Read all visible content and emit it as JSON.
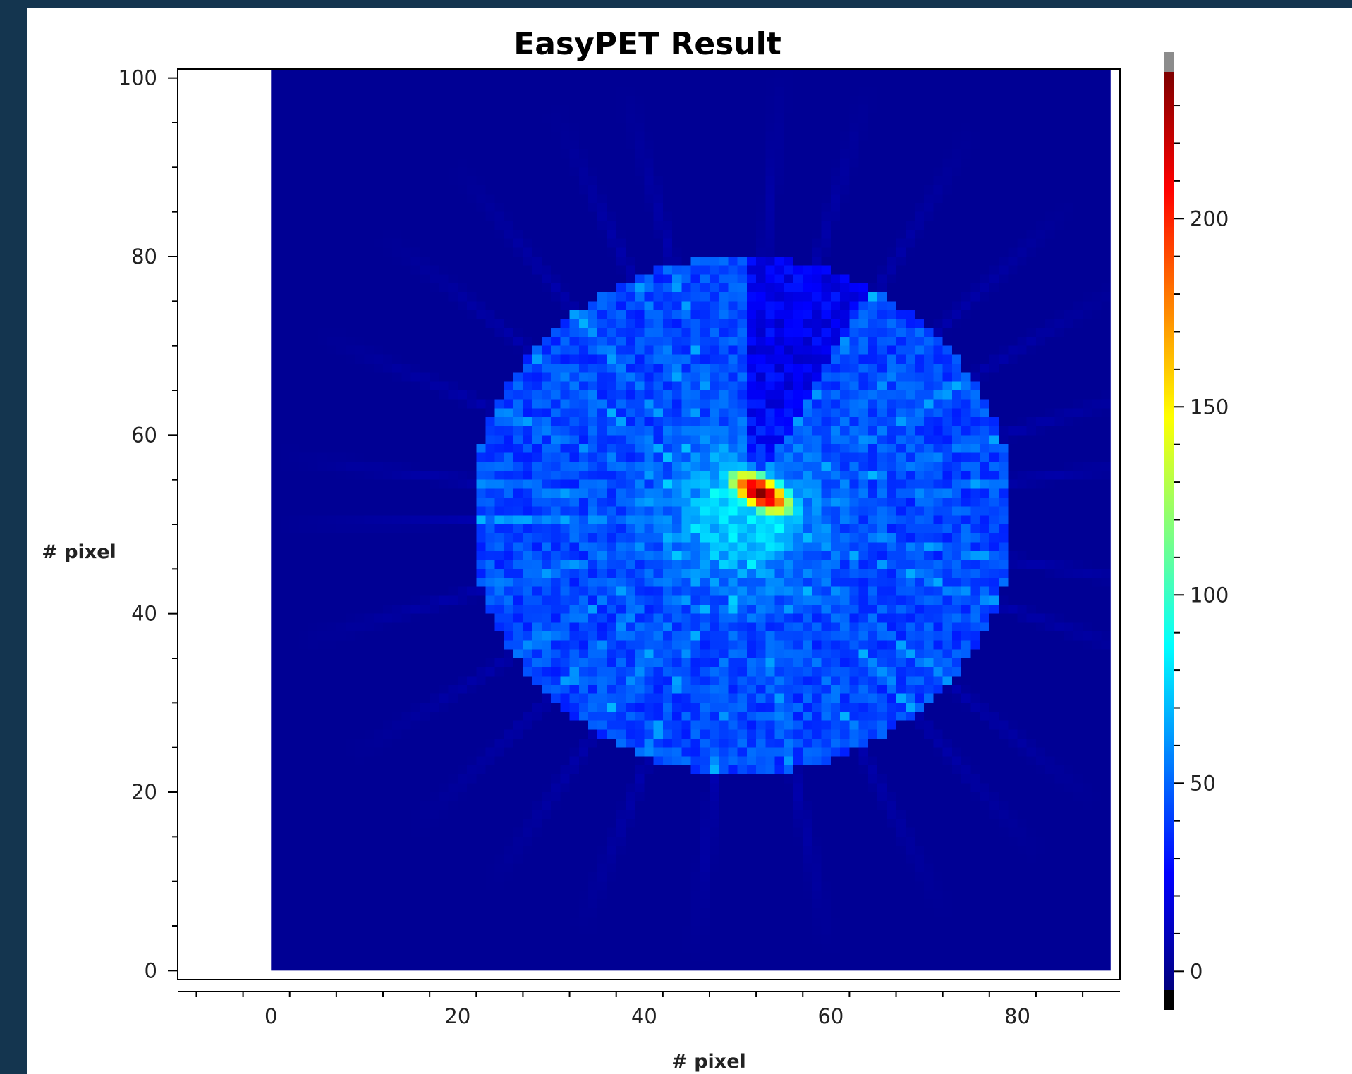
{
  "chart_data": {
    "type": "heatmap",
    "title": "EasyPET Result",
    "xlabel": "# pixel",
    "ylabel": "# pixel",
    "xlim": [
      -10,
      91
    ],
    "ylim": [
      -1,
      101
    ],
    "grid": false,
    "colormap": "jet",
    "x_ticks": [
      "0",
      "20",
      "40",
      "60",
      "80"
    ],
    "y_ticks": [
      "0",
      "20",
      "40",
      "60",
      "80",
      "100"
    ],
    "colorbar": {
      "ticks": [
        "0",
        "50",
        "100",
        "150",
        "200"
      ],
      "range": [
        -5,
        239
      ],
      "under_color": "#000000",
      "over_color": "#8c8c8c"
    },
    "image": {
      "x_extent": [
        0,
        90
      ],
      "y_extent": [
        0,
        101
      ],
      "background_value": 0,
      "disk": {
        "center_x": 50.5,
        "center_y": 51,
        "radius": 29,
        "level": 42
      },
      "cutout_wedge": {
        "from_deg": 62,
        "to_deg": 88
      },
      "hotspot": {
        "center_x": 52.5,
        "center_y": 53.5,
        "peak": 238,
        "orientation_deg": -30,
        "length": 6,
        "width": 2
      },
      "streaks": {
        "count": 26,
        "max_extent": 50,
        "level": 8
      }
    }
  }
}
